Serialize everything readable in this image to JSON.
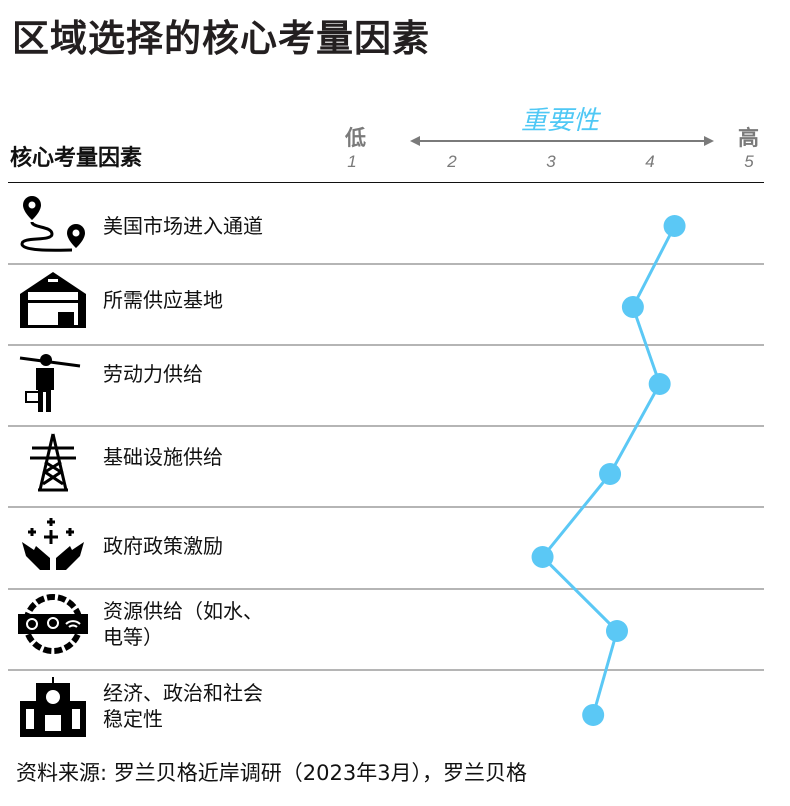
{
  "title": "区域选择的核心考量因素",
  "column_header": "核心考量因素",
  "source": "资料来源: 罗兰贝格近岸调研（2023年3月），罗兰贝格",
  "chart_data": {
    "type": "line",
    "title": "",
    "axis_title": "重要性",
    "low_label": "低",
    "high_label": "高",
    "ticks": [
      "1",
      "2",
      "3",
      "4",
      "5"
    ],
    "xlim": [
      1,
      5
    ],
    "orientation": "horizontal-value-vertical-category",
    "line_color": "#5bc8f5",
    "categories": [
      "美国市场进入通道",
      "所需供应基地",
      "劳动力供给",
      "基础设施供给",
      "政府政策激励",
      "资源供给（如水、电等）",
      "经济、政治和社会稳定性"
    ],
    "values": [
      4.25,
      3.83,
      4.1,
      3.6,
      2.92,
      3.67,
      3.43
    ]
  },
  "rows": [
    {
      "label": "美国市场进入通道",
      "icon": "map-route-icon"
    },
    {
      "label": "所需供应基地",
      "icon": "warehouse-icon"
    },
    {
      "label": "劳动力供给",
      "icon": "worker-icon"
    },
    {
      "label": "基础设施供给",
      "icon": "power-tower-icon"
    },
    {
      "label": "政府政策激励",
      "icon": "hands-plus-icon"
    },
    {
      "label": "资源供给（如水、",
      "label2": "电等）",
      "icon": "resources-gear-icon"
    },
    {
      "label": "经济、政治和社会",
      "label2": "稳定性",
      "icon": "government-building-icon"
    }
  ]
}
